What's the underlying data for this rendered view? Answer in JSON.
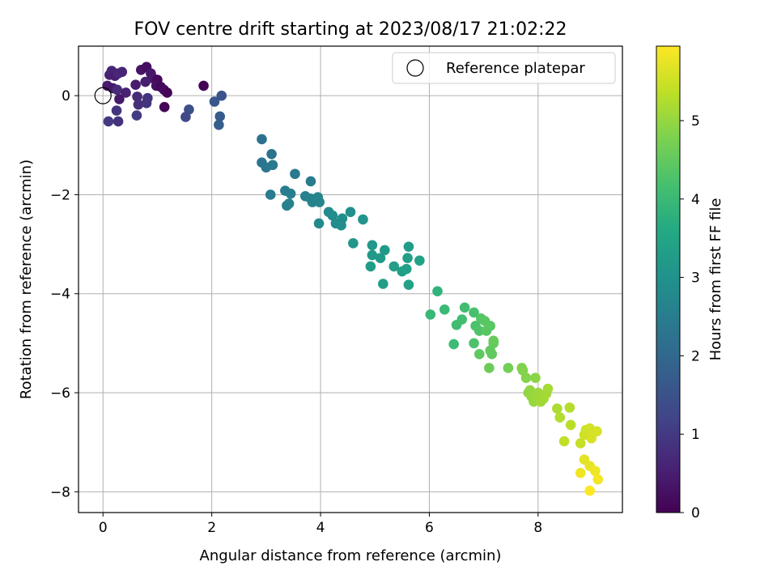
{
  "chart_data": {
    "type": "scatter",
    "title": "FOV centre drift starting at 2023/08/17 21:02:22",
    "xlabel": "Angular distance from reference (arcmin)",
    "ylabel": "Rotation from reference (arcmin)",
    "xlim": [
      -0.45,
      9.55
    ],
    "ylim": [
      -8.42,
      1.0
    ],
    "xticks": [
      0,
      2,
      4,
      6,
      8
    ],
    "yticks": [
      0,
      -2,
      -4,
      -6,
      -8
    ],
    "xtick_labels": [
      "0",
      "2",
      "4",
      "6",
      "8"
    ],
    "ytick_labels": [
      "0",
      "−2",
      "−4",
      "−6",
      "−8"
    ],
    "grid": true,
    "legend": {
      "placement": "upper right",
      "entries": [
        "Reference platepar"
      ]
    },
    "reference_point": {
      "x": 0,
      "y": 0,
      "label": "Reference platepar"
    },
    "colorbar": {
      "label": "Hours from first FF file",
      "colormap": "viridis",
      "range": [
        0,
        5.95
      ],
      "ticks": [
        0,
        1,
        2,
        3,
        4,
        5
      ],
      "tick_labels": [
        "0",
        "1",
        "2",
        "3",
        "4",
        "5"
      ]
    },
    "points": [
      {
        "x": 0.08,
        "y": 0.2,
        "h": 0.45
      },
      {
        "x": 0.12,
        "y": 0.42,
        "h": 0.55
      },
      {
        "x": 0.16,
        "y": 0.5,
        "h": 0.6
      },
      {
        "x": 0.22,
        "y": 0.4,
        "h": 0.5
      },
      {
        "x": 0.28,
        "y": 0.45,
        "h": 0.65
      },
      {
        "x": 0.35,
        "y": 0.48,
        "h": 0.62
      },
      {
        "x": 0.18,
        "y": 0.15,
        "h": 0.35
      },
      {
        "x": 0.26,
        "y": 0.12,
        "h": 0.7
      },
      {
        "x": 0.3,
        "y": -0.07,
        "h": 0.4
      },
      {
        "x": 0.42,
        "y": 0.06,
        "h": 0.55
      },
      {
        "x": 0.25,
        "y": -0.3,
        "h": 0.9
      },
      {
        "x": 0.1,
        "y": -0.52,
        "h": 1.0
      },
      {
        "x": 0.28,
        "y": -0.52,
        "h": 0.85
      },
      {
        "x": 0.62,
        "y": -0.4,
        "h": 1.05
      },
      {
        "x": 0.63,
        "y": -0.02,
        "h": 0.7
      },
      {
        "x": 0.65,
        "y": -0.18,
        "h": 0.8
      },
      {
        "x": 0.6,
        "y": 0.22,
        "h": 0.45
      },
      {
        "x": 0.7,
        "y": 0.52,
        "h": 0.3
      },
      {
        "x": 0.8,
        "y": 0.58,
        "h": 0.2
      },
      {
        "x": 0.88,
        "y": 0.45,
        "h": 0.35
      },
      {
        "x": 0.92,
        "y": 0.35,
        "h": 0.4
      },
      {
        "x": 0.78,
        "y": 0.28,
        "h": 0.5
      },
      {
        "x": 0.82,
        "y": -0.05,
        "h": 0.85
      },
      {
        "x": 0.8,
        "y": -0.15,
        "h": 0.9
      },
      {
        "x": 1.0,
        "y": 0.32,
        "h": 0.15
      },
      {
        "x": 0.98,
        "y": 0.2,
        "h": 0.25
      },
      {
        "x": 1.06,
        "y": 0.18,
        "h": 0.1
      },
      {
        "x": 1.12,
        "y": 0.12,
        "h": 0.18
      },
      {
        "x": 1.18,
        "y": 0.06,
        "h": 0.08
      },
      {
        "x": 1.13,
        "y": -0.23,
        "h": 0.05
      },
      {
        "x": 1.85,
        "y": 0.2,
        "h": 0.02
      },
      {
        "x": 1.58,
        "y": -0.28,
        "h": 1.45
      },
      {
        "x": 1.52,
        "y": -0.43,
        "h": 1.3
      },
      {
        "x": 2.05,
        "y": -0.12,
        "h": 1.6
      },
      {
        "x": 2.18,
        "y": 0.0,
        "h": 1.55
      },
      {
        "x": 2.15,
        "y": -0.42,
        "h": 1.7
      },
      {
        "x": 2.13,
        "y": -0.59,
        "h": 1.75
      },
      {
        "x": 2.92,
        "y": -0.88,
        "h": 2.2
      },
      {
        "x": 2.92,
        "y": -1.35,
        "h": 2.3
      },
      {
        "x": 3.0,
        "y": -1.45,
        "h": 2.35
      },
      {
        "x": 3.1,
        "y": -1.18,
        "h": 2.25
      },
      {
        "x": 3.12,
        "y": -1.4,
        "h": 2.4
      },
      {
        "x": 3.08,
        "y": -2.0,
        "h": 2.45
      },
      {
        "x": 3.35,
        "y": -1.92,
        "h": 2.5
      },
      {
        "x": 3.38,
        "y": -2.22,
        "h": 2.55
      },
      {
        "x": 3.42,
        "y": -2.18,
        "h": 2.6
      },
      {
        "x": 3.45,
        "y": -1.98,
        "h": 2.52
      },
      {
        "x": 3.53,
        "y": -1.58,
        "h": 2.42
      },
      {
        "x": 3.72,
        "y": -2.03,
        "h": 2.58
      },
      {
        "x": 3.82,
        "y": -1.73,
        "h": 2.48
      },
      {
        "x": 3.82,
        "y": -2.08,
        "h": 2.62
      },
      {
        "x": 3.85,
        "y": -2.15,
        "h": 2.65
      },
      {
        "x": 3.95,
        "y": -2.05,
        "h": 2.7
      },
      {
        "x": 3.98,
        "y": -2.15,
        "h": 2.68
      },
      {
        "x": 3.97,
        "y": -2.58,
        "h": 2.78
      },
      {
        "x": 4.15,
        "y": -2.35,
        "h": 2.8
      },
      {
        "x": 4.22,
        "y": -2.42,
        "h": 2.85
      },
      {
        "x": 4.28,
        "y": -2.58,
        "h": 2.88
      },
      {
        "x": 4.38,
        "y": -2.62,
        "h": 2.92
      },
      {
        "x": 4.4,
        "y": -2.48,
        "h": 2.9
      },
      {
        "x": 4.55,
        "y": -2.35,
        "h": 2.95
      },
      {
        "x": 4.78,
        "y": -2.5,
        "h": 3.05
      },
      {
        "x": 4.6,
        "y": -2.98,
        "h": 3.1
      },
      {
        "x": 4.95,
        "y": -3.02,
        "h": 3.15
      },
      {
        "x": 4.95,
        "y": -3.22,
        "h": 3.18
      },
      {
        "x": 5.1,
        "y": -3.28,
        "h": 3.22
      },
      {
        "x": 4.92,
        "y": -3.45,
        "h": 3.25
      },
      {
        "x": 5.18,
        "y": -3.12,
        "h": 3.2
      },
      {
        "x": 5.15,
        "y": -3.8,
        "h": 3.3
      },
      {
        "x": 5.35,
        "y": -3.45,
        "h": 3.28
      },
      {
        "x": 5.5,
        "y": -3.55,
        "h": 3.32
      },
      {
        "x": 5.58,
        "y": -3.5,
        "h": 3.35
      },
      {
        "x": 5.6,
        "y": -3.28,
        "h": 3.3
      },
      {
        "x": 5.62,
        "y": -3.05,
        "h": 3.25
      },
      {
        "x": 5.62,
        "y": -3.82,
        "h": 3.4
      },
      {
        "x": 5.82,
        "y": -3.33,
        "h": 3.38
      },
      {
        "x": 6.02,
        "y": -4.42,
        "h": 3.95
      },
      {
        "x": 6.15,
        "y": -3.95,
        "h": 3.85
      },
      {
        "x": 6.28,
        "y": -4.32,
        "h": 4.0
      },
      {
        "x": 6.45,
        "y": -5.02,
        "h": 4.05
      },
      {
        "x": 6.5,
        "y": -4.63,
        "h": 4.1
      },
      {
        "x": 6.6,
        "y": -4.52,
        "h": 4.15
      },
      {
        "x": 6.65,
        "y": -4.28,
        "h": 4.12
      },
      {
        "x": 6.82,
        "y": -4.38,
        "h": 4.2
      },
      {
        "x": 6.85,
        "y": -4.65,
        "h": 4.25
      },
      {
        "x": 6.82,
        "y": -5.0,
        "h": 4.28
      },
      {
        "x": 6.92,
        "y": -4.75,
        "h": 4.3
      },
      {
        "x": 6.95,
        "y": -4.5,
        "h": 4.35
      },
      {
        "x": 7.02,
        "y": -4.55,
        "h": 4.38
      },
      {
        "x": 7.05,
        "y": -4.75,
        "h": 4.4
      },
      {
        "x": 7.12,
        "y": -4.65,
        "h": 4.42
      },
      {
        "x": 6.92,
        "y": -5.22,
        "h": 4.45
      },
      {
        "x": 7.12,
        "y": -5.15,
        "h": 4.48
      },
      {
        "x": 7.15,
        "y": -5.22,
        "h": 4.5
      },
      {
        "x": 7.18,
        "y": -5.0,
        "h": 4.52
      },
      {
        "x": 7.18,
        "y": -4.95,
        "h": 4.55
      },
      {
        "x": 7.1,
        "y": -5.5,
        "h": 4.6
      },
      {
        "x": 7.45,
        "y": -5.5,
        "h": 4.68
      },
      {
        "x": 7.7,
        "y": -5.5,
        "h": 4.8
      },
      {
        "x": 7.72,
        "y": -5.55,
        "h": 4.82
      },
      {
        "x": 7.78,
        "y": -5.7,
        "h": 4.85
      },
      {
        "x": 7.95,
        "y": -5.7,
        "h": 4.9
      },
      {
        "x": 7.82,
        "y": -6.0,
        "h": 4.95
      },
      {
        "x": 7.85,
        "y": -5.95,
        "h": 4.97
      },
      {
        "x": 7.88,
        "y": -6.08,
        "h": 5.0
      },
      {
        "x": 7.92,
        "y": -6.18,
        "h": 5.02
      },
      {
        "x": 7.98,
        "y": -6.05,
        "h": 5.05
      },
      {
        "x": 8.02,
        "y": -6.1,
        "h": 5.08
      },
      {
        "x": 8.05,
        "y": -6.18,
        "h": 5.1
      },
      {
        "x": 8.0,
        "y": -6.0,
        "h": 5.06
      },
      {
        "x": 8.1,
        "y": -6.12,
        "h": 5.12
      },
      {
        "x": 8.18,
        "y": -5.92,
        "h": 5.15
      },
      {
        "x": 8.15,
        "y": -6.02,
        "h": 5.14
      },
      {
        "x": 8.35,
        "y": -6.32,
        "h": 5.2
      },
      {
        "x": 8.4,
        "y": -6.5,
        "h": 5.25
      },
      {
        "x": 8.58,
        "y": -6.3,
        "h": 5.28
      },
      {
        "x": 8.6,
        "y": -6.65,
        "h": 5.32
      },
      {
        "x": 8.48,
        "y": -6.98,
        "h": 5.38
      },
      {
        "x": 8.78,
        "y": -7.02,
        "h": 5.45
      },
      {
        "x": 8.85,
        "y": -6.85,
        "h": 5.5
      },
      {
        "x": 8.88,
        "y": -6.75,
        "h": 5.52
      },
      {
        "x": 8.95,
        "y": -6.72,
        "h": 5.55
      },
      {
        "x": 9.08,
        "y": -6.78,
        "h": 5.58
      },
      {
        "x": 8.98,
        "y": -6.92,
        "h": 5.6
      },
      {
        "x": 8.85,
        "y": -7.35,
        "h": 5.7
      },
      {
        "x": 8.95,
        "y": -7.48,
        "h": 5.75
      },
      {
        "x": 9.05,
        "y": -7.58,
        "h": 5.8
      },
      {
        "x": 9.1,
        "y": -7.75,
        "h": 5.85
      },
      {
        "x": 8.78,
        "y": -7.62,
        "h": 5.82
      },
      {
        "x": 8.95,
        "y": -7.98,
        "h": 5.95
      }
    ]
  }
}
